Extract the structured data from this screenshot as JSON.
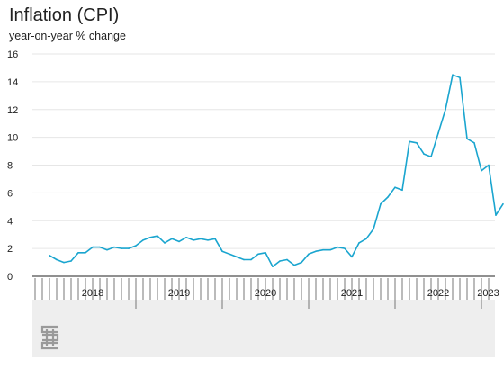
{
  "chart_data": {
    "type": "line",
    "title": "Inflation (CPI)",
    "subtitle": "year-on-year % change",
    "ylim": [
      0,
      16
    ],
    "yticks": [
      0,
      2,
      4,
      6,
      8,
      10,
      12,
      14,
      16
    ],
    "grid": true,
    "years": [
      "2018",
      "2019",
      "2020",
      "2021",
      "2022",
      "2023"
    ],
    "x": [
      "2018-01",
      "2018-02",
      "2018-03",
      "2018-04",
      "2018-05",
      "2018-06",
      "2018-07",
      "2018-08",
      "2018-09",
      "2018-10",
      "2018-11",
      "2018-12",
      "2019-01",
      "2019-02",
      "2019-03",
      "2019-04",
      "2019-05",
      "2019-06",
      "2019-07",
      "2019-08",
      "2019-09",
      "2019-10",
      "2019-11",
      "2019-12",
      "2020-01",
      "2020-02",
      "2020-03",
      "2020-04",
      "2020-05",
      "2020-06",
      "2020-07",
      "2020-08",
      "2020-09",
      "2020-10",
      "2020-11",
      "2020-12",
      "2021-01",
      "2021-02",
      "2021-03",
      "2021-04",
      "2021-05",
      "2021-06",
      "2021-07",
      "2021-08",
      "2021-09",
      "2021-10",
      "2021-11",
      "2021-12",
      "2022-01",
      "2022-02",
      "2022-03",
      "2022-04",
      "2022-05",
      "2022-06",
      "2022-07",
      "2022-08",
      "2022-09",
      "2022-10",
      "2022-11",
      "2022-12",
      "2023-01",
      "2023-02",
      "2023-03",
      "2023-04"
    ],
    "series": [
      {
        "color": "#1aa5cf",
        "values": [
          1.5,
          1.2,
          1.0,
          1.1,
          1.7,
          1.7,
          2.1,
          2.1,
          1.9,
          2.1,
          2.0,
          2.0,
          2.2,
          2.6,
          2.8,
          2.9,
          2.4,
          2.7,
          2.5,
          2.8,
          2.6,
          2.7,
          2.6,
          2.7,
          1.8,
          1.6,
          1.4,
          1.2,
          1.2,
          1.6,
          1.7,
          0.7,
          1.1,
          1.2,
          0.8,
          1.0,
          1.6,
          1.8,
          1.9,
          1.9,
          2.1,
          2.0,
          1.4,
          2.4,
          2.7,
          3.4,
          5.2,
          5.7,
          6.4,
          6.2,
          9.7,
          9.6,
          8.8,
          8.6,
          10.3,
          12.0,
          14.5,
          14.3,
          9.9,
          9.6,
          7.6,
          8.0,
          4.4,
          5.2
        ]
      }
    ]
  },
  "logo_text": "cbs"
}
